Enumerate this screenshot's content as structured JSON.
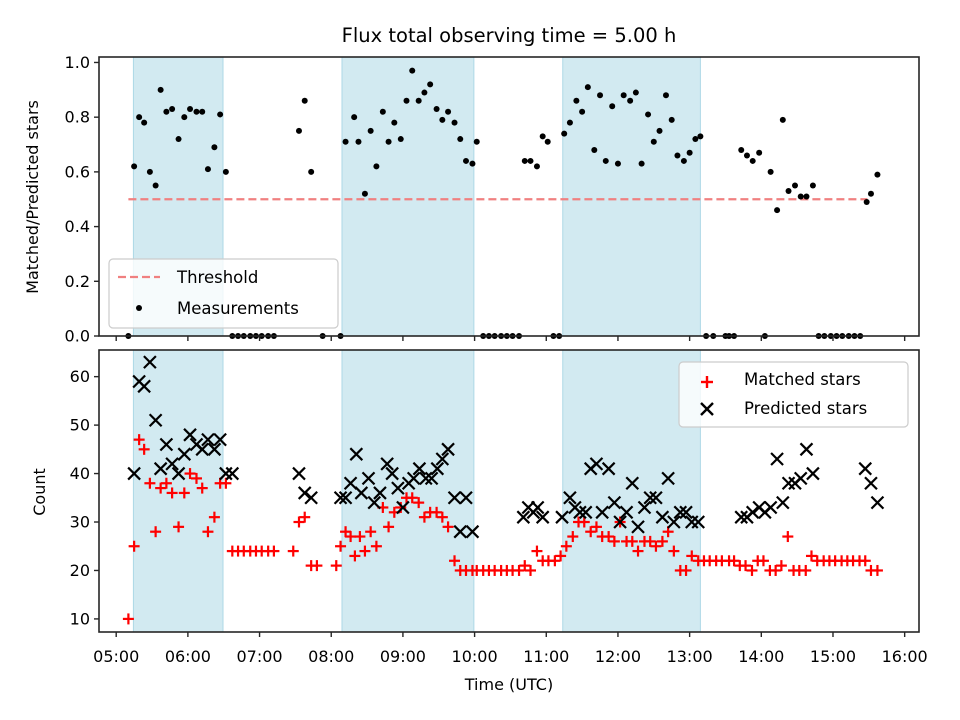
{
  "chart_data": [
    {
      "id": "ratio",
      "type": "scatter",
      "title": "Flux total observing time = 5.00 h",
      "xlabel": "",
      "ylabel": "Matched/Predicted stars",
      "xlim_hours": [
        4.76,
        16.2
      ],
      "ylim": [
        0.0,
        1.02
      ],
      "yticks": [
        0.0,
        0.2,
        0.4,
        0.6,
        0.8,
        1.0
      ],
      "ytick_labels": [
        "0.0",
        "0.2",
        "0.4",
        "0.6",
        "0.8",
        "1.0"
      ],
      "grid": false,
      "legend": {
        "placement": "lower-left",
        "entries": [
          "Threshold",
          "Measurements"
        ]
      },
      "threshold": {
        "name": "Threshold",
        "value": 0.5,
        "x_range_hours": [
          5.17,
          15.48
        ],
        "color": "#f08080",
        "style": "dashed"
      },
      "shaded_spans_hours": [
        [
          5.24,
          6.49
        ],
        [
          8.15,
          9.99
        ],
        [
          11.23,
          13.15
        ]
      ],
      "shade_color": "#add8e6",
      "series": [
        {
          "name": "Measurements",
          "marker": "dot",
          "color": "#000000",
          "x_hours": [
            5.17,
            5.25,
            5.32,
            5.39,
            5.47,
            5.55,
            5.62,
            5.7,
            5.78,
            5.87,
            5.95,
            6.03,
            6.12,
            6.2,
            6.28,
            6.37,
            6.45,
            6.53,
            6.62,
            6.7,
            6.78,
            6.87,
            6.95,
            7.03,
            7.12,
            7.2,
            7.55,
            7.63,
            7.72,
            7.88,
            8.13,
            8.2,
            8.32,
            8.38,
            8.47,
            8.55,
            8.63,
            8.72,
            8.8,
            8.88,
            8.97,
            9.05,
            9.13,
            9.22,
            9.3,
            9.38,
            9.47,
            9.55,
            9.63,
            9.72,
            9.8,
            9.88,
            9.97,
            10.03,
            10.12,
            10.2,
            10.28,
            10.37,
            10.45,
            10.53,
            10.62,
            10.7,
            10.78,
            10.87,
            10.95,
            11.02,
            11.1,
            11.18,
            11.25,
            11.33,
            11.42,
            11.5,
            11.58,
            11.67,
            11.75,
            11.83,
            11.92,
            12.0,
            12.08,
            12.17,
            12.25,
            12.33,
            12.42,
            12.5,
            12.58,
            12.67,
            12.75,
            12.83,
            12.92,
            13.0,
            13.08,
            13.15,
            13.23,
            13.33,
            13.5,
            13.55,
            13.62,
            13.72,
            13.8,
            13.88,
            13.97,
            14.05,
            14.13,
            14.22,
            14.3,
            14.38,
            14.47,
            14.55,
            14.63,
            14.72,
            14.8,
            14.88,
            14.97,
            15.05,
            15.13,
            15.22,
            15.3,
            15.38,
            15.47,
            15.53,
            15.62
          ],
          "y": [
            0.0,
            0.62,
            0.8,
            0.78,
            0.6,
            0.55,
            0.9,
            0.82,
            0.83,
            0.72,
            0.8,
            0.83,
            0.82,
            0.82,
            0.61,
            0.69,
            0.81,
            0.6,
            0.0,
            0.0,
            0.0,
            0.0,
            0.0,
            0.0,
            0.0,
            0.0,
            0.75,
            0.86,
            0.6,
            0.0,
            0.0,
            0.71,
            0.8,
            0.71,
            0.52,
            0.75,
            0.62,
            0.82,
            0.71,
            0.78,
            0.72,
            0.86,
            0.97,
            0.86,
            0.89,
            0.92,
            0.83,
            0.79,
            0.82,
            0.78,
            0.72,
            0.64,
            0.63,
            0.71,
            0.0,
            0.0,
            0.0,
            0.0,
            0.0,
            0.0,
            0.0,
            0.64,
            0.64,
            0.62,
            0.73,
            0.71,
            0.0,
            0.0,
            0.74,
            0.78,
            0.86,
            0.82,
            0.91,
            0.68,
            0.88,
            0.64,
            0.84,
            0.63,
            0.88,
            0.86,
            0.89,
            0.63,
            0.81,
            0.71,
            0.75,
            0.88,
            0.79,
            0.66,
            0.64,
            0.67,
            0.72,
            0.73,
            0.0,
            0.0,
            0.0,
            0.0,
            0.0,
            0.68,
            0.66,
            0.64,
            0.67,
            0.0,
            0.6,
            0.46,
            0.79,
            0.53,
            0.55,
            0.51,
            0.51,
            0.55,
            0.0,
            0.0,
            0.0,
            0.0,
            0.0,
            0.0,
            0.0,
            0.0,
            0.49,
            0.52,
            0.59
          ]
        }
      ]
    },
    {
      "id": "counts",
      "type": "scatter",
      "title": "",
      "xlabel": "Time (UTC)",
      "ylabel": "Count",
      "xlim_hours": [
        4.76,
        16.2
      ],
      "ylim": [
        7.3,
        65.5
      ],
      "yticks": [
        10,
        20,
        30,
        40,
        50,
        60
      ],
      "ytick_labels": [
        "10",
        "20",
        "30",
        "40",
        "50",
        "60"
      ],
      "xticks_hours": [
        5,
        6,
        7,
        8,
        9,
        10,
        11,
        12,
        13,
        14,
        15,
        16
      ],
      "xtick_labels": [
        "05:00",
        "06:00",
        "07:00",
        "08:00",
        "09:00",
        "10:00",
        "11:00",
        "12:00",
        "13:00",
        "14:00",
        "15:00",
        "16:00"
      ],
      "grid": false,
      "legend": {
        "placement": "top-right",
        "entries": [
          "Matched stars",
          "Predicted stars"
        ]
      },
      "shaded_spans_hours": [
        [
          5.24,
          6.49
        ],
        [
          8.15,
          9.99
        ],
        [
          11.23,
          13.15
        ]
      ],
      "shade_color": "#add8e6",
      "series": [
        {
          "name": "Matched stars",
          "marker": "plus",
          "color": "#ff0000",
          "x_hours": [
            5.17,
            5.25,
            5.32,
            5.39,
            5.47,
            5.55,
            5.62,
            5.7,
            5.78,
            5.87,
            5.95,
            6.03,
            6.12,
            6.2,
            6.28,
            6.37,
            6.45,
            6.53,
            6.62,
            6.7,
            6.78,
            6.87,
            6.95,
            7.03,
            7.12,
            7.2,
            7.47,
            7.55,
            7.63,
            7.72,
            7.8,
            8.07,
            8.13,
            8.2,
            8.27,
            8.33,
            8.4,
            8.47,
            8.55,
            8.63,
            8.72,
            8.8,
            8.88,
            8.97,
            9.05,
            9.13,
            9.22,
            9.3,
            9.38,
            9.47,
            9.55,
            9.63,
            9.72,
            9.8,
            9.88,
            9.97,
            10.03,
            10.12,
            10.2,
            10.28,
            10.37,
            10.45,
            10.53,
            10.62,
            10.7,
            10.78,
            10.87,
            10.95,
            11.03,
            11.12,
            11.2,
            11.28,
            11.37,
            11.45,
            11.53,
            11.62,
            11.7,
            11.78,
            11.87,
            11.95,
            12.03,
            12.12,
            12.2,
            12.28,
            12.37,
            12.45,
            12.53,
            12.62,
            12.7,
            12.78,
            12.87,
            12.95,
            13.03,
            13.12,
            13.2,
            13.28,
            13.37,
            13.45,
            13.55,
            13.62,
            13.7,
            13.78,
            13.87,
            13.95,
            14.03,
            14.12,
            14.2,
            14.28,
            14.37,
            14.45,
            14.53,
            14.62,
            14.7,
            14.78,
            14.87,
            14.95,
            15.03,
            15.12,
            15.2,
            15.28,
            15.37,
            15.45,
            15.53,
            15.62
          ],
          "y": [
            10,
            25,
            47,
            45,
            38,
            28,
            37,
            38,
            36,
            29,
            36,
            40,
            39,
            37,
            28,
            31,
            38,
            38,
            24,
            24,
            24,
            24,
            24,
            24,
            24,
            24,
            24,
            30,
            31,
            21,
            21,
            21,
            25,
            28,
            27,
            23,
            27,
            24,
            28,
            25,
            33,
            29,
            32,
            33,
            35,
            35,
            34,
            31,
            32,
            32,
            31,
            29,
            22,
            20,
            20,
            20,
            20,
            20,
            20,
            20,
            20,
            20,
            20,
            20,
            21,
            20,
            24,
            22,
            22,
            22,
            23,
            25,
            27,
            30,
            30,
            28,
            29,
            27,
            27,
            26,
            30,
            26,
            26,
            24,
            26,
            26,
            25,
            26,
            28,
            24,
            20,
            20,
            23,
            22,
            22,
            22,
            22,
            22,
            22,
            22,
            21,
            21,
            20,
            22,
            22,
            20,
            20,
            21,
            27,
            20,
            20,
            20,
            23,
            22,
            22,
            22,
            22,
            22,
            22,
            22,
            22,
            22,
            20,
            20,
            20
          ]
        },
        {
          "name": "Predicted stars",
          "marker": "x",
          "color": "#000000",
          "x_hours": [
            5.25,
            5.32,
            5.39,
            5.47,
            5.55,
            5.62,
            5.7,
            5.78,
            5.87,
            5.95,
            6.03,
            6.12,
            6.2,
            6.28,
            6.37,
            6.45,
            6.53,
            6.62,
            7.55,
            7.63,
            7.72,
            8.13,
            8.2,
            8.27,
            8.35,
            8.42,
            8.52,
            8.6,
            8.68,
            8.78,
            8.85,
            8.93,
            9.0,
            9.08,
            9.15,
            9.23,
            9.32,
            9.4,
            9.48,
            9.55,
            9.63,
            9.72,
            9.8,
            9.88,
            9.97,
            10.68,
            10.75,
            10.82,
            10.88,
            10.95,
            11.22,
            11.33,
            11.4,
            11.47,
            11.55,
            11.62,
            11.7,
            11.78,
            11.87,
            11.95,
            12.03,
            12.12,
            12.2,
            12.28,
            12.37,
            12.45,
            12.53,
            12.62,
            12.7,
            12.78,
            12.87,
            12.95,
            13.03,
            13.12,
            13.72,
            13.8,
            13.88,
            13.97,
            14.05,
            14.13,
            14.22,
            14.3,
            14.38,
            14.47,
            14.55,
            14.63,
            14.72,
            15.45,
            15.53,
            15.62
          ],
          "y": [
            40,
            59,
            58,
            63,
            51,
            41,
            46,
            42,
            40,
            44,
            48,
            46,
            45,
            47,
            45,
            47,
            40,
            40,
            40,
            36,
            35,
            35,
            35,
            38,
            44,
            36,
            39,
            34,
            36,
            42,
            40,
            37,
            33,
            38,
            39,
            41,
            39,
            39,
            41,
            43,
            45,
            35,
            28,
            35,
            28,
            31,
            33,
            32,
            33,
            31,
            31,
            35,
            33,
            32,
            32,
            41,
            42,
            32,
            41,
            34,
            30,
            32,
            38,
            29,
            33,
            35,
            35,
            31,
            39,
            30,
            32,
            32,
            30,
            30,
            31,
            31,
            32,
            33,
            32,
            33,
            43,
            34,
            38,
            38,
            39,
            45,
            40,
            41,
            38,
            34
          ]
        }
      ]
    }
  ]
}
